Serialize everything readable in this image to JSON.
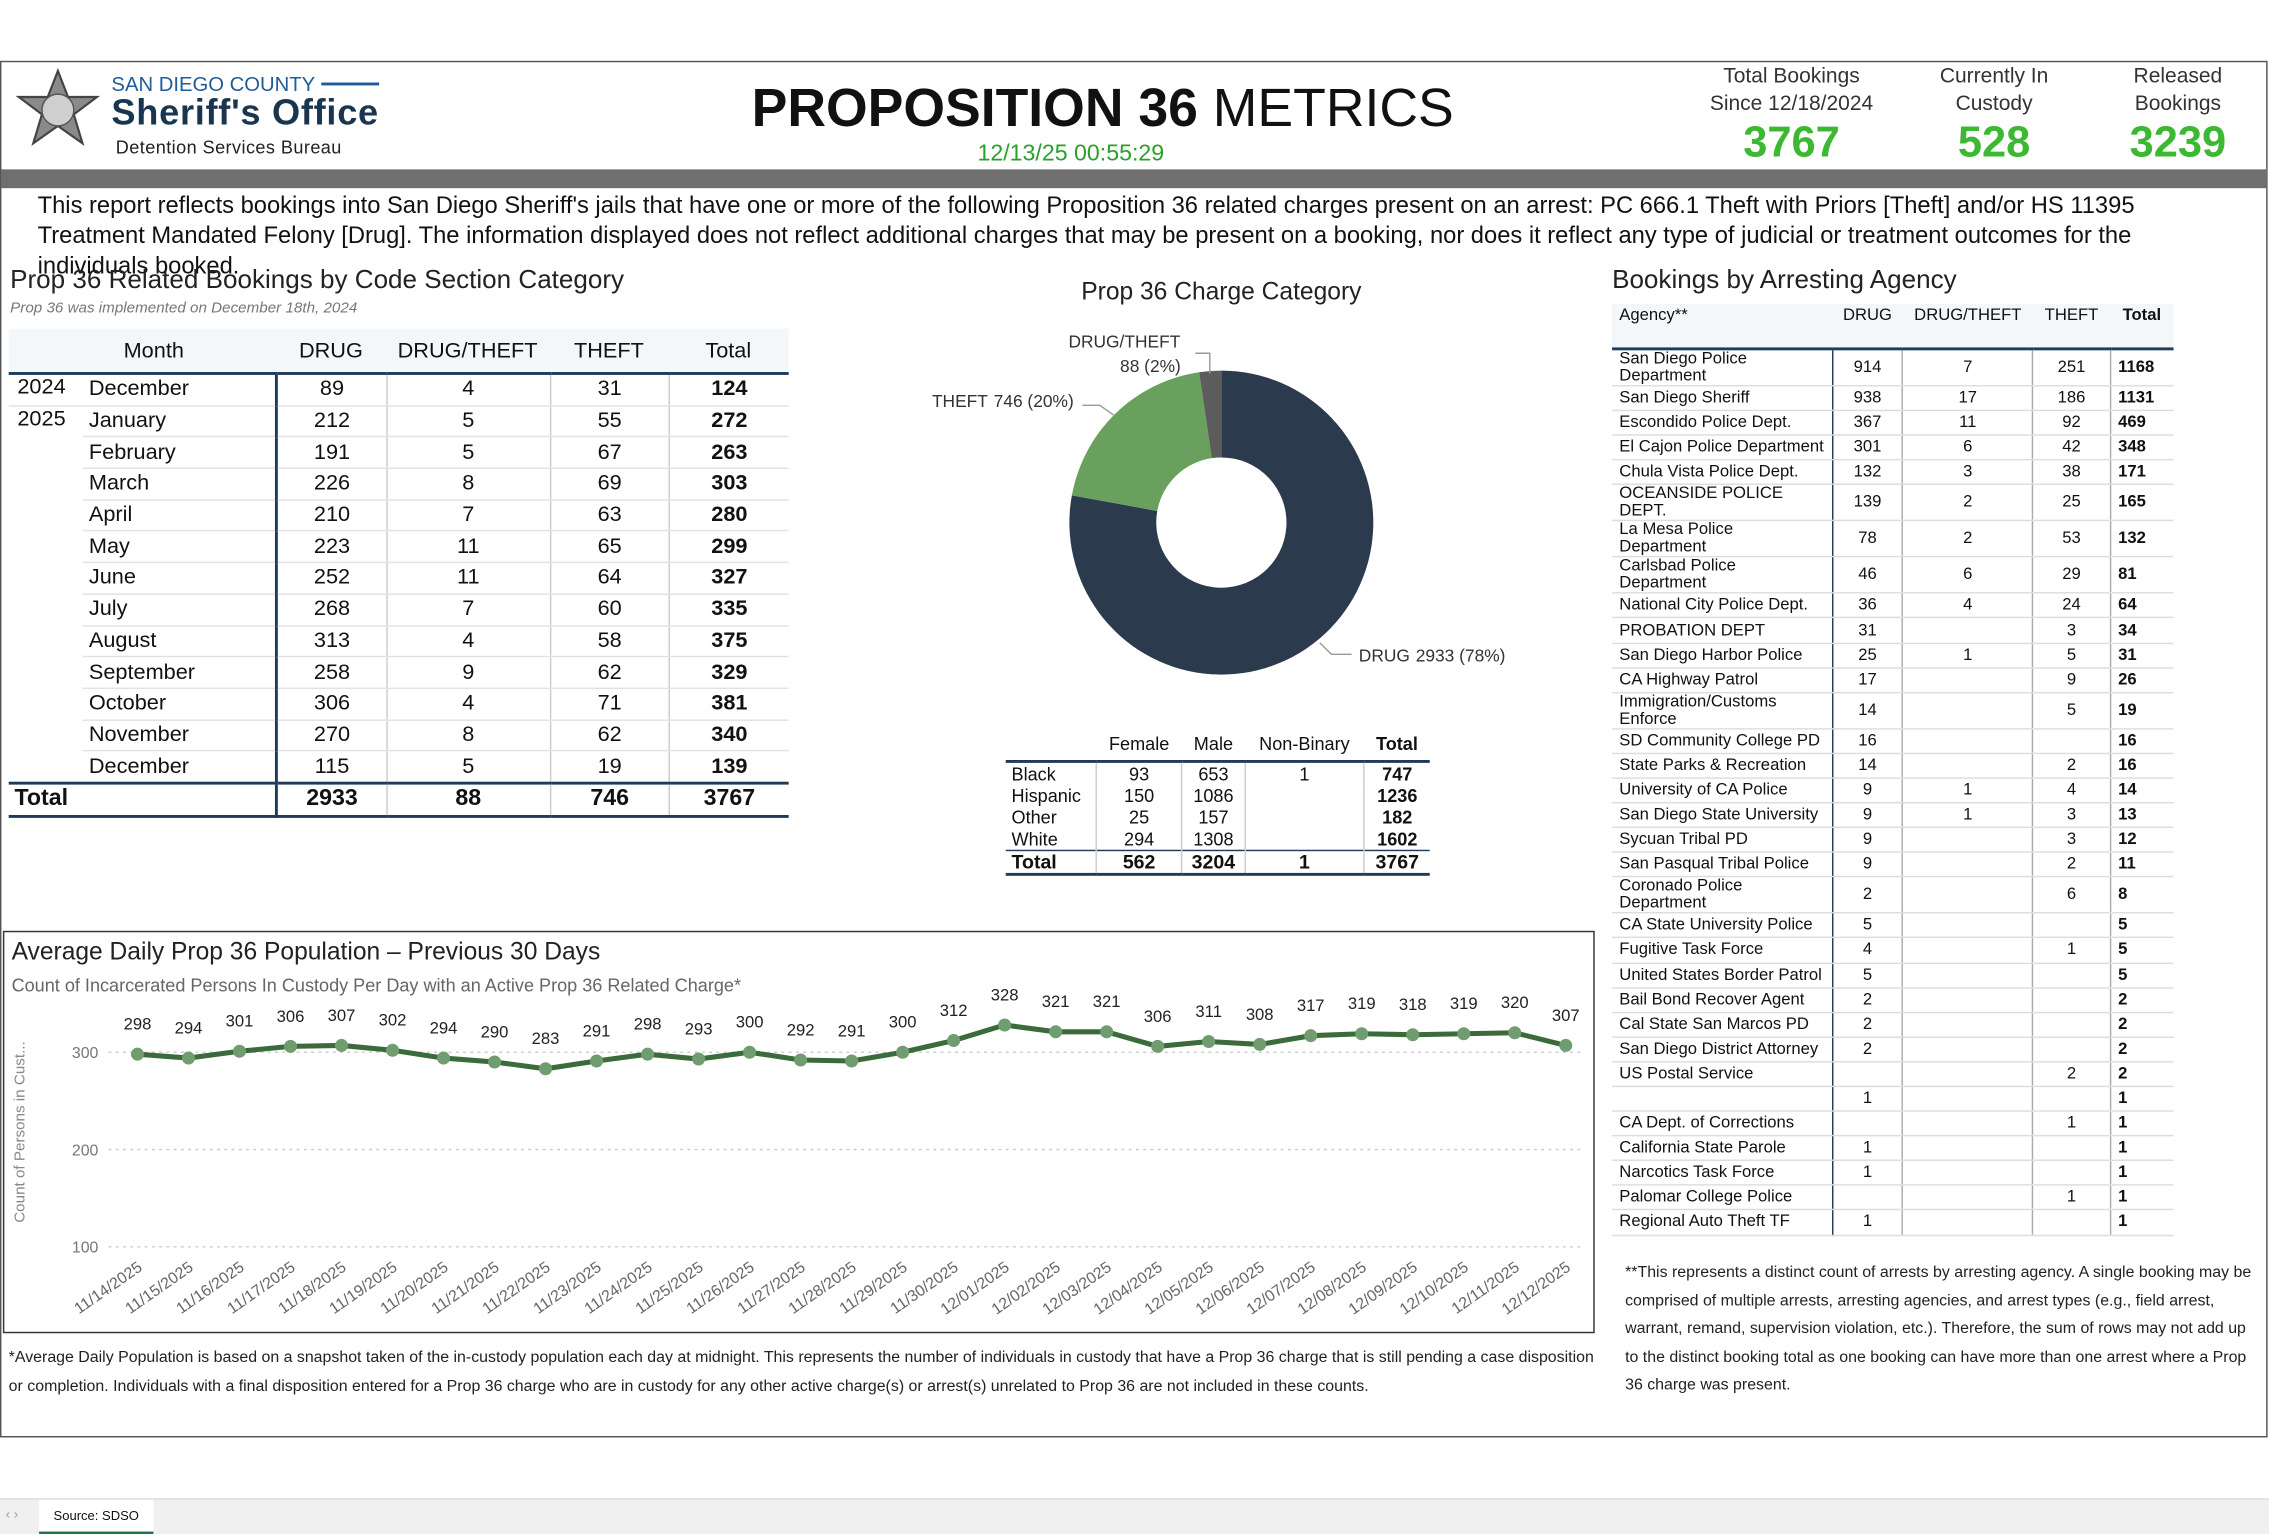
{
  "header": {
    "county": "SAN DIEGO COUNTY",
    "office": "Sheriff's Office",
    "bureau": "Detention Services Bureau",
    "title_bold": "PROPOSITION 36",
    "title_rest": "METRICS",
    "timestamp": "12/13/25 00:55:29"
  },
  "kpis": [
    {
      "label": "Total Bookings Since 12/18/2024",
      "value": 3767
    },
    {
      "label": "Currently In Custody",
      "value": 528
    },
    {
      "label": "Released Bookings",
      "value": 3239
    }
  ],
  "description": "This report reflects bookings into San Diego Sheriff's jails that have one or more of the following Proposition 36 related charges present on an arrest: PC 666.1 Theft with Priors [Theft] and/or HS 11395 Treatment Mandated Felony [Drug]. The information displayed does not reflect additional charges that may be present on a booking, nor does it reflect any type of judicial or treatment outcomes for the individuals booked.",
  "monthly": {
    "title": "Prop 36 Related Bookings by Code Section Category",
    "subtitle": "Prop 36 was implemented on December 18th, 2024",
    "columns": [
      "Month",
      "DRUG",
      "DRUG/THEFT",
      "THEFT",
      "Total"
    ],
    "groups": [
      {
        "year": "2024",
        "rows": [
          [
            "December",
            89,
            4,
            31,
            124
          ]
        ]
      },
      {
        "year": "2025",
        "rows": [
          [
            "January",
            212,
            5,
            55,
            272
          ],
          [
            "February",
            191,
            5,
            67,
            263
          ],
          [
            "March",
            226,
            8,
            69,
            303
          ],
          [
            "April",
            210,
            7,
            63,
            280
          ],
          [
            "May",
            223,
            11,
            65,
            299
          ],
          [
            "June",
            252,
            11,
            64,
            327
          ],
          [
            "July",
            268,
            7,
            60,
            335
          ],
          [
            "August",
            313,
            4,
            58,
            375
          ],
          [
            "September",
            258,
            9,
            62,
            329
          ],
          [
            "October",
            306,
            4,
            71,
            381
          ],
          [
            "November",
            270,
            8,
            62,
            340
          ],
          [
            "December",
            115,
            5,
            19,
            139
          ]
        ]
      }
    ],
    "total": [
      "Total",
      2933,
      88,
      746,
      3767
    ]
  },
  "gender": {
    "columns": [
      "Female",
      "Male",
      "Non-Binary",
      "Total"
    ],
    "rows": [
      [
        "Black",
        93,
        653,
        1,
        747
      ],
      [
        "Hispanic",
        150,
        1086,
        null,
        1236
      ],
      [
        "Other",
        25,
        157,
        null,
        182
      ],
      [
        "White",
        294,
        1308,
        null,
        1602
      ]
    ],
    "total": [
      "Total",
      562,
      3204,
      1,
      3767
    ]
  },
  "agency": {
    "title": "Bookings by Arresting Agency",
    "columns": [
      "Agency**",
      "DRUG",
      "DRUG/THEFT",
      "THEFT",
      "Total"
    ],
    "rows": [
      [
        "San Diego Police Department",
        914,
        7,
        251,
        1168
      ],
      [
        "San Diego Sheriff",
        938,
        17,
        186,
        1131
      ],
      [
        "Escondido Police Dept.",
        367,
        11,
        92,
        469
      ],
      [
        "El Cajon Police Department",
        301,
        6,
        42,
        348
      ],
      [
        "Chula Vista Police Dept.",
        132,
        3,
        38,
        171
      ],
      [
        "OCEANSIDE POLICE DEPT.",
        139,
        2,
        25,
        165
      ],
      [
        "La Mesa Police Department",
        78,
        2,
        53,
        132
      ],
      [
        "Carlsbad Police Department",
        46,
        6,
        29,
        81
      ],
      [
        "National City Police Dept.",
        36,
        4,
        24,
        64
      ],
      [
        "PROBATION DEPT",
        31,
        null,
        3,
        34
      ],
      [
        "San Diego Harbor Police",
        25,
        1,
        5,
        31
      ],
      [
        "CA Highway Patrol",
        17,
        null,
        9,
        26
      ],
      [
        "Immigration/Customs Enforce",
        14,
        null,
        5,
        19
      ],
      [
        "SD Community College PD",
        16,
        null,
        null,
        16
      ],
      [
        "State Parks & Recreation",
        14,
        null,
        2,
        16
      ],
      [
        "University of CA Police",
        9,
        1,
        4,
        14
      ],
      [
        "San Diego State University",
        9,
        1,
        3,
        13
      ],
      [
        "Sycuan Tribal PD",
        9,
        null,
        3,
        12
      ],
      [
        "San Pasqual Tribal Police",
        9,
        null,
        2,
        11
      ],
      [
        "Coronado Police Department",
        2,
        null,
        6,
        8
      ],
      [
        "CA State University Police",
        5,
        null,
        null,
        5
      ],
      [
        "Fugitive Task Force",
        4,
        null,
        1,
        5
      ],
      [
        "United States Border Patrol",
        5,
        null,
        null,
        5
      ],
      [
        "Bail Bond Recover Agent",
        2,
        null,
        null,
        2
      ],
      [
        "Cal State San Marcos PD",
        2,
        null,
        null,
        2
      ],
      [
        "San Diego District Attorney",
        2,
        null,
        null,
        2
      ],
      [
        "US Postal Service",
        null,
        null,
        2,
        2
      ],
      [
        null,
        1,
        null,
        null,
        1
      ],
      [
        "CA Dept. of Corrections",
        null,
        null,
        1,
        1
      ],
      [
        "California State Parole",
        1,
        null,
        null,
        1
      ],
      [
        "Narcotics Task Force",
        1,
        null,
        null,
        1
      ],
      [
        "Palomar College Police",
        null,
        null,
        1,
        1
      ],
      [
        "Regional Auto Theft TF",
        1,
        null,
        null,
        1
      ]
    ],
    "note": "**This represents a distinct count of arrests by arresting agency. A single booking may be comprised of multiple arrests, arresting agencies, and arrest types (e.g., field arrest, warrant, remand, supervision violation, etc.). Therefore, the sum of rows may not add up to the distinct booking total as one booking can have more than one arrest where a Prop 36 charge was present."
  },
  "chart_data": [
    {
      "type": "pie",
      "title": "Prop 36 Charge Category",
      "categories": [
        "DRUG",
        "THEFT",
        "DRUG/THEFT"
      ],
      "values": [
        2933,
        746,
        88
      ],
      "value_labels": [
        "2933 (78%)",
        "746 (20%)",
        "88 (2%)"
      ],
      "colors": [
        "#2b3a4c",
        "#6aa05e",
        "#5c5c5c"
      ]
    },
    {
      "type": "line",
      "title": "Average Daily Prop 36 Population – Previous 30 Days",
      "subtitle": "Count of Incarcerated Persons In Custody Per Day with an Active Prop 36 Related Charge*",
      "y_label": "Count of Persons in Cust...",
      "x": [
        "11/14/2025",
        "11/15/2025",
        "11/16/2025",
        "11/17/2025",
        "11/18/2025",
        "11/19/2025",
        "11/20/2025",
        "11/21/2025",
        "11/22/2025",
        "11/23/2025",
        "11/24/2025",
        "11/25/2025",
        "11/26/2025",
        "11/27/2025",
        "11/28/2025",
        "11/29/2025",
        "11/30/2025",
        "12/01/2025",
        "12/02/2025",
        "12/03/2025",
        "12/04/2025",
        "12/05/2025",
        "12/06/2025",
        "12/07/2025",
        "12/08/2025",
        "12/09/2025",
        "12/10/2025",
        "12/11/2025",
        "12/12/2025"
      ],
      "values": [
        298,
        294,
        301,
        306,
        307,
        302,
        294,
        290,
        283,
        291,
        298,
        293,
        300,
        292,
        291,
        300,
        312,
        328,
        321,
        321,
        306,
        311,
        308,
        317,
        319,
        318,
        319,
        320,
        307
      ],
      "ylim": [
        90,
        340
      ],
      "yticks": [
        100,
        200,
        300
      ],
      "grid": true,
      "color": "#3b6a3b",
      "marker_color": "#6f9d6f"
    }
  ],
  "footnote": "*Average Daily Population is based on a snapshot taken of the in-custody population each day at midnight. This represents the number of individuals in custody that have a Prop 36 charge that is still pending a case disposition or completion. Individuals with a final disposition entered for a Prop 36 charge who are in custody for any other active charge(s) or arrest(s) unrelated to Prop 36 are not included in these counts.",
  "tab": "Source: SDSO"
}
